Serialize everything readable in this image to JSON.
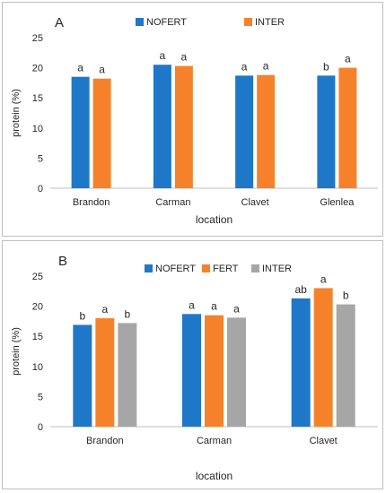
{
  "chart_data": [
    {
      "type": "bar",
      "panel_label": "A",
      "categories": [
        "Brandon",
        "Carman",
        "Clavet",
        "Glenlea"
      ],
      "series": [
        {
          "name": "NOFERT",
          "color": "#1f77c8",
          "values": [
            18.5,
            20.5,
            18.7,
            18.7
          ],
          "letters": [
            "a",
            "a",
            "a",
            "b"
          ]
        },
        {
          "name": "INTER",
          "color": "#f5822a",
          "values": [
            18.2,
            20.3,
            18.8,
            20.0
          ],
          "letters": [
            "a",
            "a",
            "a",
            "a"
          ]
        }
      ],
      "xlabel": "location",
      "ylabel": "protein (%)",
      "ylim": [
        0,
        25
      ],
      "yticks": [
        "0",
        "5",
        "10",
        "15",
        "20",
        "25"
      ],
      "grid": false,
      "legend": "top"
    },
    {
      "type": "bar",
      "panel_label": "B",
      "categories": [
        "Brandon",
        "Carman",
        "Clavet"
      ],
      "series": [
        {
          "name": "NOFERT",
          "color": "#1f77c8",
          "values": [
            16.9,
            18.7,
            21.3
          ],
          "letters": [
            "b",
            "a",
            "ab"
          ]
        },
        {
          "name": "FERT",
          "color": "#f5822a",
          "values": [
            18.0,
            18.5,
            23.0
          ],
          "letters": [
            "a",
            "a",
            "a"
          ]
        },
        {
          "name": "INTER",
          "color": "#a6a6a6",
          "values": [
            17.2,
            18.1,
            20.3
          ],
          "letters": [
            "b",
            "a",
            "b"
          ]
        }
      ],
      "xlabel": "location",
      "ylabel": "protein (%)",
      "ylim": [
        0,
        25
      ],
      "yticks": [
        "0",
        "5",
        "10",
        "15",
        "20",
        "25"
      ],
      "grid": false,
      "legend": "top"
    }
  ]
}
